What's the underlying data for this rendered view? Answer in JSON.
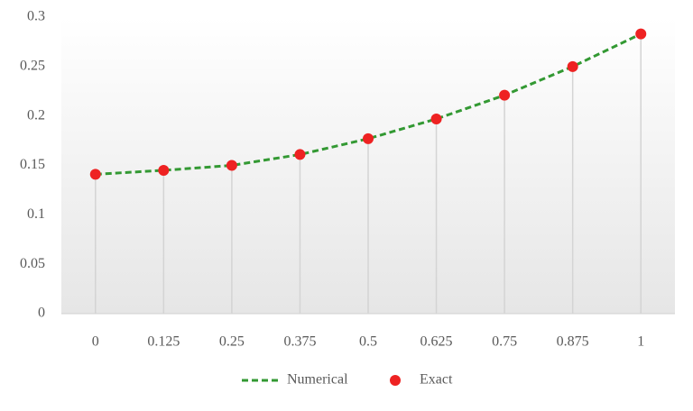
{
  "chart_data": {
    "type": "line",
    "categories": [
      "0",
      "0.125",
      "0.25",
      "0.375",
      "0.5",
      "0.625",
      "0.75",
      "0.875",
      "1"
    ],
    "series": [
      {
        "name": "Numerical",
        "color": "#339933",
        "style": "dashed",
        "values": [
          0.141,
          0.145,
          0.15,
          0.161,
          0.177,
          0.197,
          0.221,
          0.25,
          0.283
        ]
      },
      {
        "name": "Exact",
        "color": "#ee2222",
        "style": "markers",
        "values": [
          0.141,
          0.145,
          0.15,
          0.161,
          0.177,
          0.197,
          0.221,
          0.25,
          0.283
        ]
      }
    ],
    "ylim": [
      0,
      0.3
    ],
    "yticks": [
      0,
      0.05,
      0.1,
      0.15,
      0.2,
      0.25,
      0.3
    ],
    "drop_lines": true,
    "legend": "bottom"
  }
}
